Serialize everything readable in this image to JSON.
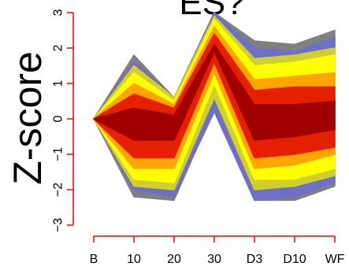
{
  "chart_data": {
    "type": "line",
    "title": "ES?",
    "xlabel": "",
    "ylabel": "Z-score",
    "categories": [
      "B",
      "10",
      "20",
      "30",
      "D3",
      "D10",
      "WF"
    ],
    "ylim": [
      -3,
      3
    ],
    "yticks": [
      "−3",
      "−2",
      "−1",
      "0",
      "1",
      "2",
      "3"
    ],
    "axis_color": "#ff0000",
    "bands": [
      {
        "color": "#808080",
        "upper": [
          0,
          1.8,
          0.6,
          3.0,
          2.2,
          2.1,
          2.5
        ],
        "lower": [
          0,
          -2.2,
          -2.3,
          0.3,
          -2.3,
          -2.3,
          -1.9
        ]
      },
      {
        "color": "#6f6fc8",
        "upper": [
          0,
          1.6,
          0.6,
          3.0,
          2.0,
          1.9,
          2.3
        ],
        "lower": [
          0,
          -2.0,
          -2.2,
          0.2,
          -2.3,
          -2.2,
          -1.8
        ]
      },
      {
        "color": "#cfcf30",
        "upper": [
          0,
          1.5,
          0.6,
          2.9,
          1.7,
          1.8,
          2.0
        ],
        "lower": [
          0,
          -1.9,
          -2.0,
          0.6,
          -2.0,
          -1.9,
          -1.6
        ]
      },
      {
        "color": "#ffff00",
        "upper": [
          0,
          1.3,
          0.5,
          2.8,
          1.5,
          1.6,
          1.8
        ],
        "lower": [
          0,
          -1.7,
          -1.8,
          1.0,
          -1.7,
          -1.7,
          -1.4
        ]
      },
      {
        "color": "#ffa500",
        "upper": [
          0,
          1.0,
          0.4,
          2.6,
          1.1,
          1.2,
          1.3
        ],
        "lower": [
          0,
          -1.4,
          -1.4,
          1.3,
          -1.4,
          -1.3,
          -1.0
        ]
      },
      {
        "color": "#e42000",
        "upper": [
          0,
          0.7,
          0.3,
          2.4,
          0.8,
          0.9,
          0.9
        ],
        "lower": [
          0,
          -1.1,
          -1.1,
          1.6,
          -1.1,
          -1.0,
          -0.8
        ]
      },
      {
        "color": "#a00000",
        "upper": [
          0,
          0.3,
          0.1,
          2.1,
          0.4,
          0.4,
          0.5
        ],
        "lower": [
          0,
          -0.6,
          -0.6,
          1.9,
          -0.6,
          -0.5,
          -0.3
        ]
      }
    ]
  }
}
